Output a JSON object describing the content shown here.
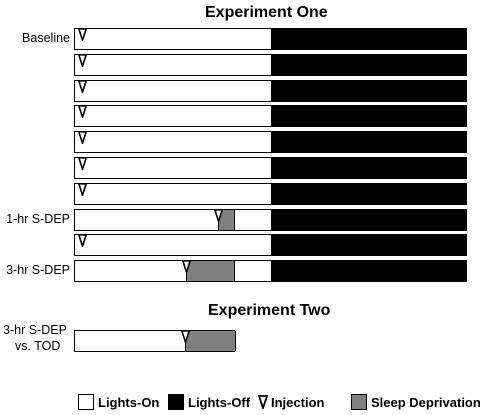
{
  "experiment_one": {
    "title": "Experiment One",
    "rows": [
      {
        "label": "Baseline",
        "sdep": null
      },
      {
        "label": "",
        "sdep": null
      },
      {
        "label": "",
        "sdep": null
      },
      {
        "label": "",
        "sdep": null
      },
      {
        "label": "",
        "sdep": null
      },
      {
        "label": "",
        "sdep": null
      },
      {
        "label": "",
        "sdep": null
      },
      {
        "label": "1-hr S-DEP",
        "sdep": "1hr"
      },
      {
        "label": "",
        "sdep": null
      },
      {
        "label": "3-hr S-DEP",
        "sdep": "3hr"
      }
    ]
  },
  "experiment_two": {
    "title": "Experiment Two",
    "row_label_line1": "3-hr S-DEP",
    "row_label_line2": "vs. TOD"
  },
  "legend": {
    "lights_on": "Lights-On",
    "lights_off": "Lights-Off",
    "injection": "Injection",
    "sleep_deprivation": "Sleep Deprivation"
  },
  "colors": {
    "lights_on": "#ffffff",
    "lights_off": "#000000",
    "sleep_deprivation": "#808080"
  }
}
